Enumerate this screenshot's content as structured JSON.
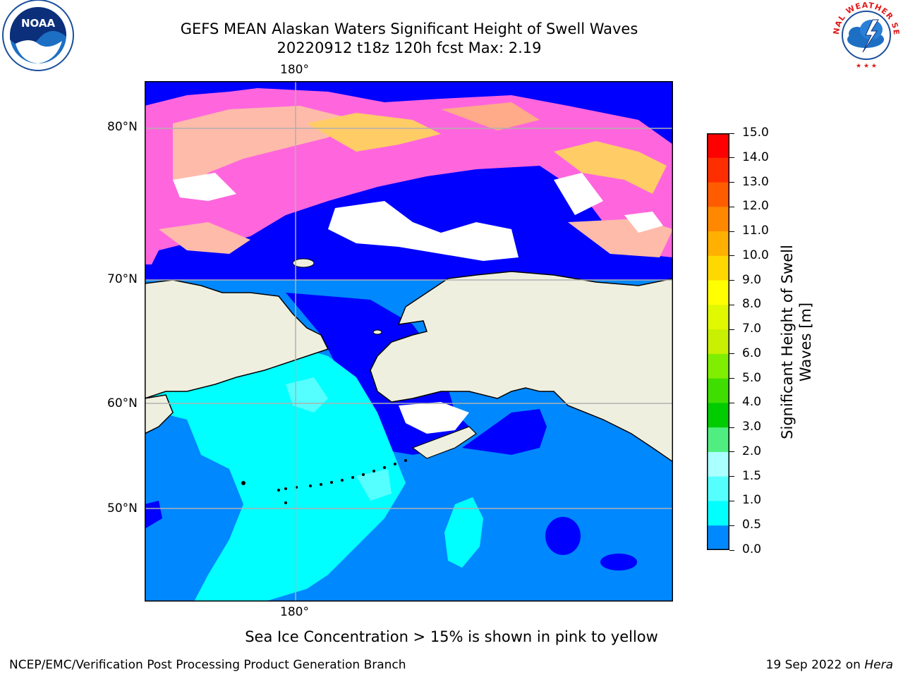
{
  "header": {
    "title": "GEFS MEAN Alaskan Waters Significant Height of Swell Waves",
    "subtitle": "20220912 t18z 120h fcst   Max: 2.19"
  },
  "logos": {
    "left": {
      "name": "noaa-logo",
      "text": "NOAA"
    },
    "right": {
      "name": "national-weather-service-logo",
      "text": "NATIONAL WEATHER SERVICE"
    }
  },
  "map": {
    "lon_label_top": "180°",
    "lon_label_bottom": "180°",
    "lat_labels": [
      "80°N",
      "70°N",
      "60°N",
      "50°N"
    ],
    "colors": {
      "land": "#efefdf",
      "coast": "#000000",
      "grid": "#b0b0b0"
    }
  },
  "colorbar": {
    "title": "Significant Height of Swell Waves [m]",
    "labels": [
      "15.0",
      "14.0",
      "13.0",
      "12.0",
      "11.0",
      "10.0",
      "9.0",
      "8.0",
      "7.0",
      "6.0",
      "5.0",
      "4.0",
      "3.0",
      "2.0",
      "1.5",
      "1.0",
      "0.5",
      "0.0"
    ],
    "colors_top_to_bottom": [
      "#ff0000",
      "#ff2e00",
      "#ff5c00",
      "#ff8800",
      "#ffb000",
      "#ffd800",
      "#ffff00",
      "#e0f800",
      "#c8f000",
      "#80ee00",
      "#40dd00",
      "#00cc00",
      "#50ee80",
      "#aaffff",
      "#55ffff",
      "#00ffff",
      "#0088ff",
      "#0000ff"
    ]
  },
  "note": "Sea Ice Concentration > 15% is shown in pink to yellow",
  "footer": {
    "left": "NCEP/EMC/Verification Post Processing Product Generation Branch",
    "right_prefix": "19 Sep 2022 on ",
    "right_machine": "Hera"
  }
}
